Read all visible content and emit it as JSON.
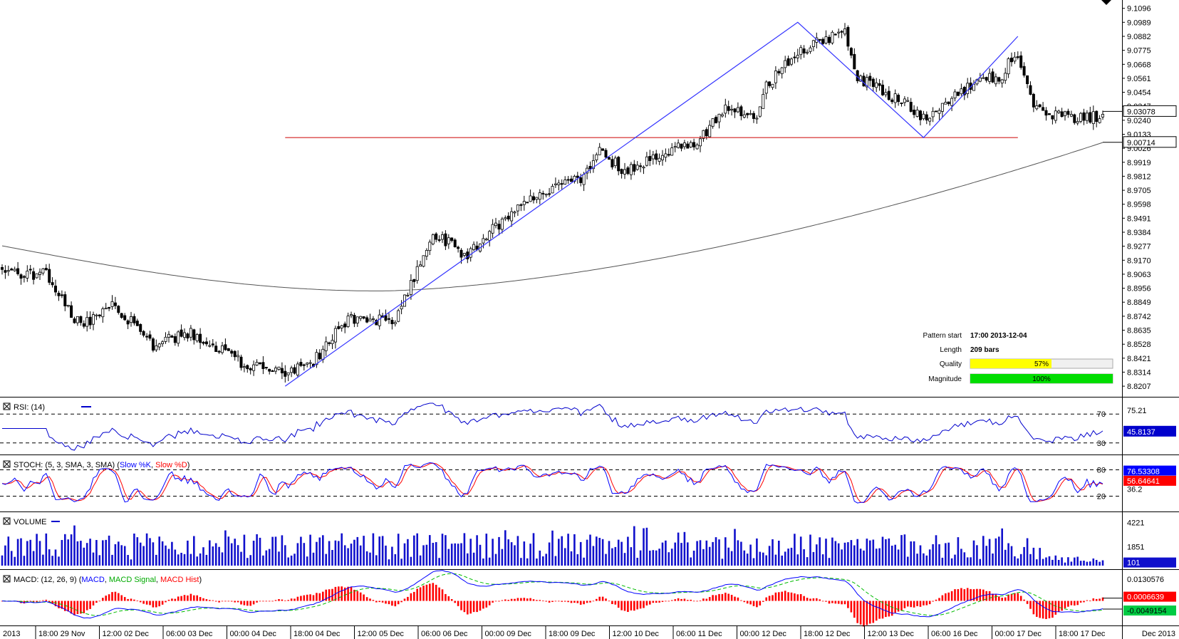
{
  "chart_data": {
    "type": "candlestick",
    "price_axis_ticks": [
      "9.1096",
      "9.0989",
      "9.0882",
      "9.0775",
      "9.0668",
      "9.0561",
      "9.0454",
      "9.0347",
      "9.0240",
      "9.0133",
      "9.0026",
      "8.9919",
      "8.9812",
      "8.9705",
      "8.9598",
      "8.9491",
      "8.9384",
      "8.9277",
      "8.9170",
      "8.9063",
      "8.8956",
      "8.8849",
      "8.8742",
      "8.8635",
      "8.8528",
      "8.8421",
      "8.8314",
      "8.8207"
    ],
    "price_ylim": [
      8.8153,
      9.1116
    ],
    "current_price": "9.03078",
    "ma_price": "9.00714",
    "support_level": 9.0108,
    "pattern_points": [
      [
        90,
        8.8207
      ],
      [
        253,
        9.0989
      ],
      [
        293,
        9.0108
      ],
      [
        323,
        9.0882
      ]
    ],
    "anchors": [
      [
        0,
        8.91
      ],
      [
        8,
        8.905
      ],
      [
        14,
        8.907
      ],
      [
        25,
        8.866
      ],
      [
        35,
        8.885
      ],
      [
        48,
        8.852
      ],
      [
        60,
        8.862
      ],
      [
        75,
        8.84
      ],
      [
        90,
        8.83
      ],
      [
        98,
        8.837
      ],
      [
        110,
        8.872
      ],
      [
        125,
        8.872
      ],
      [
        137,
        8.938
      ],
      [
        148,
        8.92
      ],
      [
        162,
        8.955
      ],
      [
        172,
        8.968
      ],
      [
        185,
        8.98
      ],
      [
        190,
        9.0
      ],
      [
        198,
        8.985
      ],
      [
        210,
        8.998
      ],
      [
        222,
        9.01
      ],
      [
        230,
        9.034
      ],
      [
        240,
        9.024
      ],
      [
        243,
        9.05
      ],
      [
        250,
        9.07
      ],
      [
        256,
        9.08
      ],
      [
        268,
        9.093
      ],
      [
        272,
        9.056
      ],
      [
        285,
        9.04
      ],
      [
        293,
        9.026
      ],
      [
        305,
        9.046
      ],
      [
        312,
        9.054
      ],
      [
        318,
        9.058
      ],
      [
        320,
        9.068
      ],
      [
        323,
        9.072
      ],
      [
        327,
        9.04
      ],
      [
        332,
        9.028
      ],
      [
        345,
        9.026
      ],
      [
        350,
        9.027
      ]
    ],
    "ma_start": 8.928,
    "ma_min": 8.8935,
    "ma_end": 9.007,
    "rsi": {
      "label": "RSI: (14)",
      "period": 14,
      "levels": [
        "70",
        "30"
      ],
      "axis_ticks": [
        "75.21"
      ],
      "current": "45.8137",
      "ylim": [
        20,
        85
      ]
    },
    "stochastic": {
      "label": "STOCH: (5, 3, SMA, 3, SMA)",
      "slow_k_label": "Slow %K",
      "slow_d_label": "Slow %D",
      "levels": [
        "80",
        "20"
      ],
      "axis_ticks": [
        "36.2"
      ],
      "current_k": "76.53308",
      "current_d": "56.64641",
      "ylim": [
        -5,
        105
      ]
    },
    "volume": {
      "label": "VOLUME",
      "axis_ticks": [
        "4221",
        "1851"
      ],
      "current": "101",
      "max": 4900
    },
    "macd": {
      "label": "MACD: (12, 26, 9)",
      "macd_label": "MACD",
      "signal_label": "MACD Signal",
      "hist_label": "MACD Hist",
      "axis_ticks": [
        "0.0130576"
      ],
      "current_hist": "0.0006639",
      "current_macd": "-0.0049154",
      "ylim": [
        -0.013,
        0.016
      ]
    },
    "x_axis_labels": [
      "2013",
      "18:00 29 Nov",
      "12:00 02 Dec",
      "06:00 03 Dec",
      "00:00 04 Dec",
      "18:00 04 Dec",
      "12:00 05 Dec",
      "06:00 06 Dec",
      "00:00 09 Dec",
      "18:00 09 Dec",
      "12:00 10 Dec",
      "06:00 11 Dec",
      "00:00 12 Dec",
      "18:00 12 Dec",
      "12:00 13 Dec",
      "06:00 16 Dec",
      "00:00 17 Dec",
      "18:00 17 Dec"
    ],
    "x_axis_corner": "Dec 2013",
    "pattern_info": {
      "start_label": "Pattern start",
      "start_value": "17:00 2013-12-04",
      "length_label": "Length",
      "length_value": "209 bars",
      "quality_label": "Quality",
      "quality_value": "57%",
      "quality": 0.57,
      "magnitude_label": "Magnitude",
      "magnitude_value": "100%",
      "magnitude": 1.0
    },
    "colors": {
      "candle": "#000000",
      "pattern_line": "#3333ff",
      "support_line": "#cc0000",
      "moving_average": "#555555",
      "rsi_line": "#0000cc",
      "stoch_k": "#0000ff",
      "stoch_d": "#ff0000",
      "volume_bar": "#1010cc",
      "macd_line": "#0000ff",
      "signal_line": "#00bb00",
      "hist_bar": "#ff0000",
      "quality_bar": "#ffff00",
      "magnitude_bar": "#00dd00"
    }
  }
}
